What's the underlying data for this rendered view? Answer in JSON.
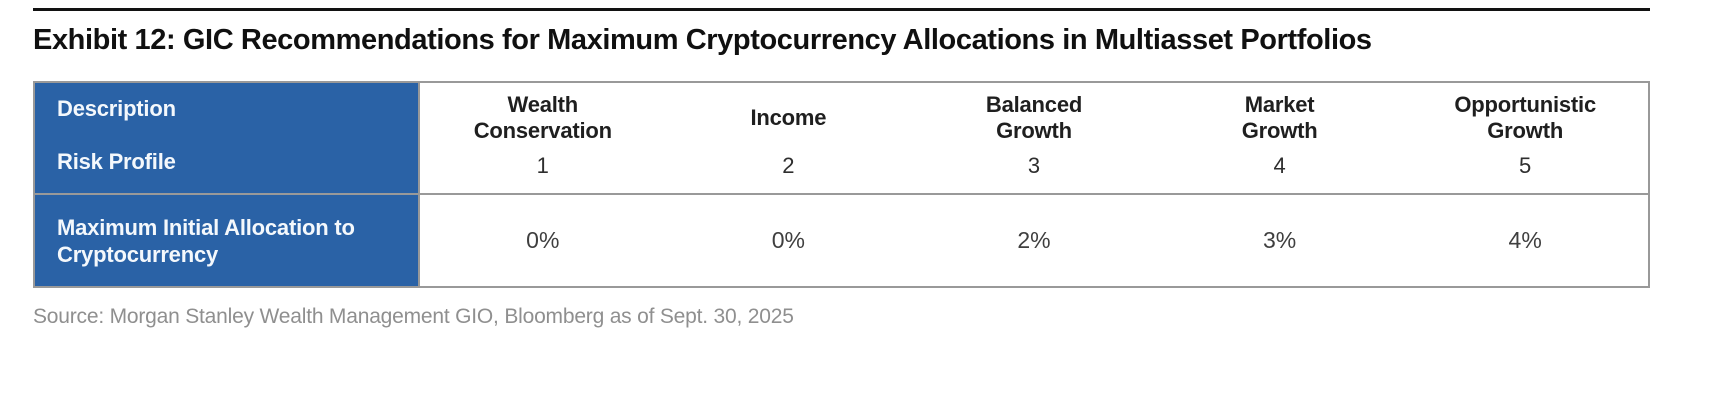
{
  "title": "Exhibit 12: GIC Recommendations for Maximum Cryptocurrency Allocations in Multiasset Portfolios",
  "table": {
    "row_labels": {
      "description": "Description",
      "risk_profile": "Risk Profile",
      "allocation": "Maximum Initial Allocation to Cryptocurrency"
    },
    "columns": [
      {
        "name": "Wealth Conservation",
        "risk_profile": "1",
        "max_allocation": "0%"
      },
      {
        "name": "Income",
        "risk_profile": "2",
        "max_allocation": "0%"
      },
      {
        "name": "Balanced Growth",
        "risk_profile": "3",
        "max_allocation": "2%"
      },
      {
        "name": "Market Growth",
        "risk_profile": "4",
        "max_allocation": "3%"
      },
      {
        "name": "Opportunistic Growth",
        "risk_profile": "5",
        "max_allocation": "4%"
      }
    ]
  },
  "source": "Source: Morgan Stanley Wealth Management GIO, Bloomberg as of Sept. 30, 2025",
  "colors": {
    "header_blue": "#2a62a6",
    "border_gray": "#999999",
    "title_black": "#101010",
    "source_gray": "#8f8f8f"
  }
}
